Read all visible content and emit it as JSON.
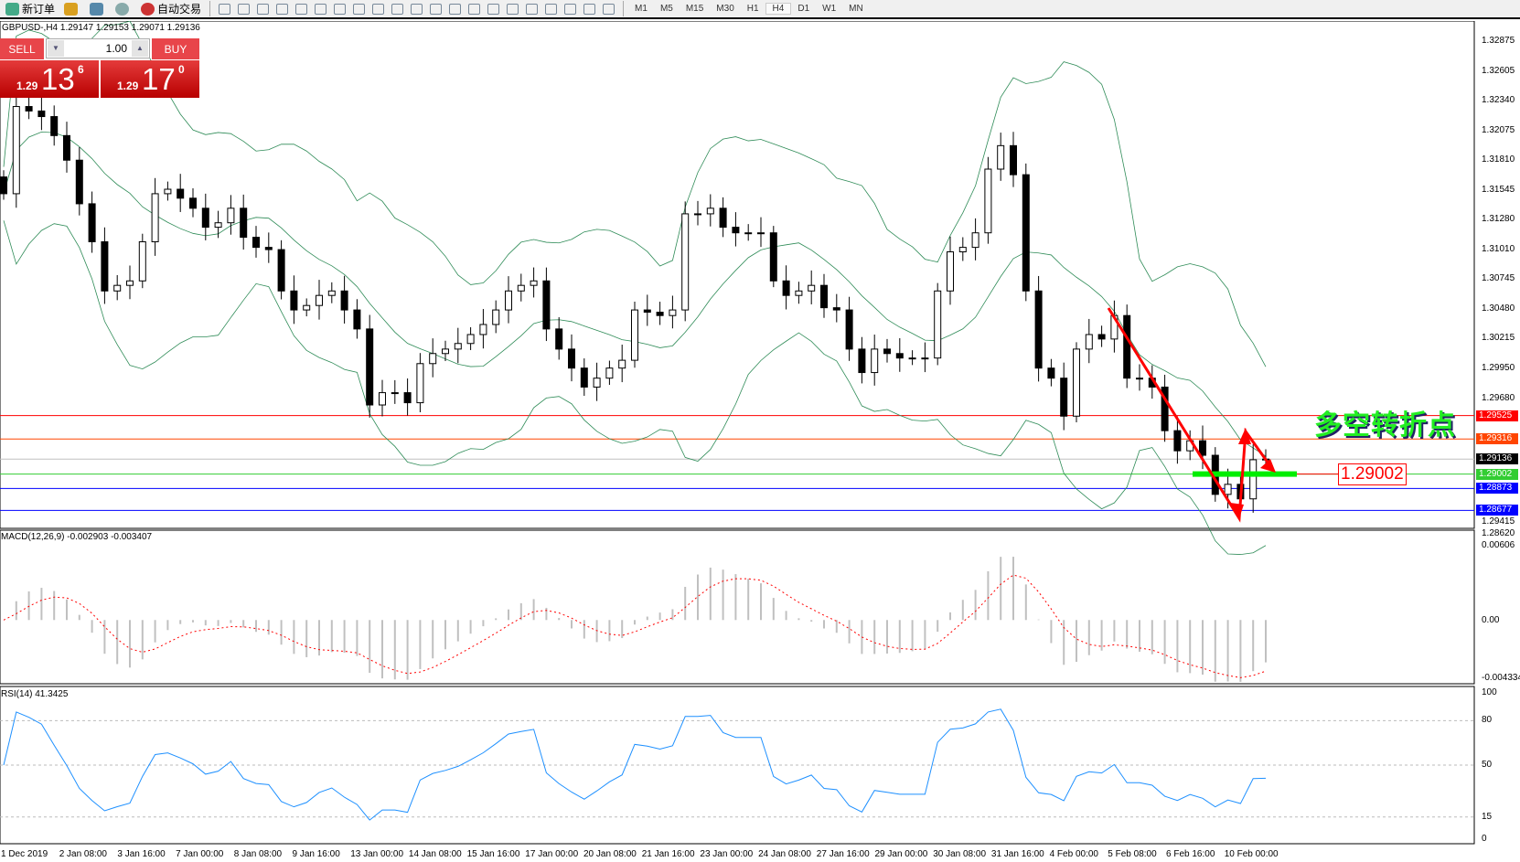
{
  "toolbar": {
    "items": [
      {
        "label": "新订单",
        "icon": "new-order-icon"
      },
      {
        "label": "",
        "icon": "history-icon"
      },
      {
        "label": "",
        "icon": "market-watch-icon"
      },
      {
        "label": "",
        "icon": "signal-icon"
      },
      {
        "label": "自动交易",
        "icon": "auto-trading-icon"
      }
    ],
    "chart_tools": [
      "bar-chart-icon",
      "candlestick-icon",
      "line-chart-icon",
      "zoom-in-icon",
      "zoom-out-icon",
      "tile-windows-icon",
      "autoscroll-icon",
      "chart-shift-icon",
      "indicators-icon",
      "periods-icon",
      "templates-icon",
      "cursor-icon",
      "crosshair-icon",
      "vertical-line-icon",
      "horizontal-line-icon",
      "trendline-icon",
      "equidistant-channel-icon",
      "fibonacci-icon",
      "text-icon",
      "text-label-icon",
      "arrows-icon"
    ],
    "timeframes": [
      "M1",
      "M5",
      "M15",
      "M30",
      "H1",
      "H4",
      "D1",
      "W1",
      "MN"
    ],
    "active_timeframe": "H4"
  },
  "chart": {
    "symbol_line": "GBPUSD-,H4  1.29147 1.29153 1.29071 1.29136",
    "trade_panel": {
      "sell_label": "SELL",
      "buy_label": "BUY",
      "lot": "1.00",
      "sell_prefix": "1.29",
      "sell_big": "13",
      "sell_sup": "6",
      "buy_prefix": "1.29",
      "buy_big": "17",
      "buy_sup": "0"
    },
    "price_axis": [
      "1.32875",
      "1.32605",
      "1.32340",
      "1.32075",
      "1.31810",
      "1.31545",
      "1.31280",
      "1.31010",
      "1.30745",
      "1.30480",
      "1.30215",
      "1.29950",
      "1.29680",
      "1.29415",
      "1.28620"
    ],
    "levels": [
      {
        "price": "1.29525",
        "color": "#ff0000"
      },
      {
        "price": "1.29316",
        "color": "#ff4500"
      },
      {
        "price": "1.29136",
        "color": "#000000",
        "line": "#c0c0c0"
      },
      {
        "price": "1.29002",
        "color": "#32cd32"
      },
      {
        "price": "1.28873",
        "color": "#0000ff"
      },
      {
        "price": "1.28677",
        "color": "#0000ff"
      }
    ],
    "annotation": "多空转折点",
    "level_label": "1.29002",
    "close": [
      1.3151,
      1.3229,
      1.3225,
      1.322,
      1.3203,
      1.3181,
      1.3142,
      1.3108,
      1.3064,
      1.3069,
      1.3073,
      1.3108,
      1.3151,
      1.3155,
      1.3147,
      1.3138,
      1.3121,
      1.3125,
      1.3138,
      1.3112,
      1.3103,
      1.3101,
      1.3064,
      1.3047,
      1.3051,
      1.306,
      1.3064,
      1.3047,
      1.303,
      1.2962,
      1.2973,
      1.2973,
      1.2964,
      1.2999,
      1.3008,
      1.3012,
      1.3017,
      1.3025,
      1.3034,
      1.3047,
      1.3064,
      1.3069,
      1.3073,
      1.303,
      1.3012,
      1.2995,
      1.2978,
      1.2986,
      1.2995,
      1.3002,
      1.3047,
      1.3045,
      1.3042,
      1.3047,
      1.3133,
      1.3133,
      1.3138,
      1.3121,
      1.3116,
      1.3116,
      1.3116,
      1.3073,
      1.306,
      1.3064,
      1.3069,
      1.3049,
      1.3047,
      1.3012,
      1.2991,
      1.3012,
      1.3008,
      1.3004,
      1.3004,
      1.3004,
      1.3064,
      1.3099,
      1.3103,
      1.3116,
      1.3173,
      1.3194,
      1.3168,
      1.3064,
      1.2995,
      1.2986,
      1.2952,
      1.3012,
      1.3025,
      1.3021,
      1.3042,
      1.2986,
      1.2986,
      1.2978,
      1.2939,
      1.2921,
      1.293,
      1.2917,
      1.2882,
      1.2891,
      1.2878,
      1.2913,
      1.29136
    ],
    "colors": {
      "bands": "#2e8b57",
      "arrows": "#ff0000",
      "bull": "#ffffff",
      "bear": "#000000"
    }
  },
  "macd": {
    "label": "MACD(12,26,9) -0.002903 -0.003407",
    "axis": [
      "0.00606",
      "0.00",
      "-0.004334"
    ],
    "colors": {
      "hist": "#c0c0c0",
      "signal": "#ff0000"
    }
  },
  "rsi": {
    "label": "RSI(14) 41.3425",
    "axis": [
      "100",
      "80",
      "50",
      "15",
      "0"
    ],
    "color": "#1e90ff"
  },
  "time_axis": [
    "1 Dec 2019",
    "2 Jan 08:00",
    "3 Jan 16:00",
    "7 Jan 00:00",
    "8 Jan 08:00",
    "9 Jan 16:00",
    "13 Jan 00:00",
    "14 Jan 08:00",
    "15 Jan 16:00",
    "17 Jan 00:00",
    "20 Jan 08:00",
    "21 Jan 16:00",
    "23 Jan 00:00",
    "24 Jan 08:00",
    "27 Jan 16:00",
    "29 Jan 00:00",
    "30 Jan 08:00",
    "31 Jan 16:00",
    "4 Feb 00:00",
    "5 Feb 08:00",
    "6 Feb 16:00",
    "10 Feb 00:00"
  ]
}
